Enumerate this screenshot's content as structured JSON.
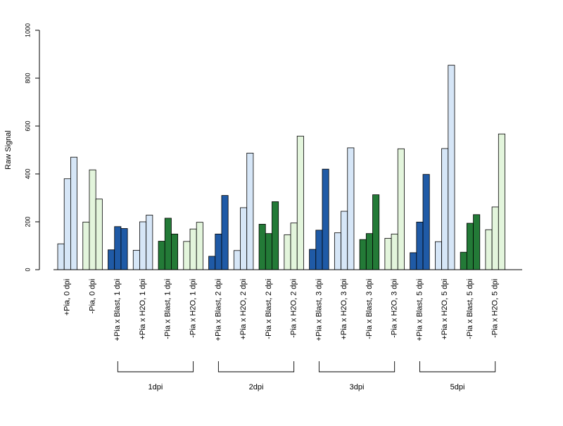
{
  "chart_data": {
    "type": "bar",
    "title": "",
    "xlabel": "",
    "ylabel": "Raw Signal",
    "ylim": [
      0,
      1000
    ],
    "yticks": [
      0,
      200,
      400,
      600,
      800,
      1000
    ],
    "grid": false,
    "legend": "none",
    "categories": [
      "+Pia, 0 dpi",
      "-Pia, 0 dpi",
      "+Pia x Blast, 1 dpi",
      "+Pia x H2O, 1 dpi",
      "-Pia x Blast, 1 dpi",
      "-Pia x H2O, 1 dpi",
      "+Pia x Blast, 2 dpi",
      "+Pia x H2O, 2 dpi",
      "-Pia x Blast, 2 dpi",
      "-Pia x H2O, 2 dpi",
      "+Pia x Blast, 3 dpi",
      "+Pia x H2O, 3 dpi",
      "-Pia x Blast, 3 dpi",
      "-Pia x H2O, 3 dpi",
      "+Pia x Blast, 5 dpi",
      "+Pia x H2O, 5 dpi",
      "-Pia x Blast, 5 dpi",
      "-Pia x H2O, 5 dpi"
    ],
    "category_colors": [
      "#d6e6f7",
      "#e3f5dc",
      "#1f5aa6",
      "#d6e6f7",
      "#237a37",
      "#e3f5dc",
      "#1f5aa6",
      "#d6e6f7",
      "#237a37",
      "#e3f5dc",
      "#1f5aa6",
      "#d6e6f7",
      "#237a37",
      "#e3f5dc",
      "#1f5aa6",
      "#d6e6f7",
      "#237a37",
      "#e3f5dc"
    ],
    "values": [
      [
        108,
        380,
        470
      ],
      [
        199,
        417,
        295
      ],
      [
        83,
        180,
        172
      ],
      [
        81,
        200,
        228
      ],
      [
        119,
        215,
        149
      ],
      [
        118,
        170,
        198
      ],
      [
        56,
        149,
        310
      ],
      [
        80,
        259,
        487
      ],
      [
        190,
        151,
        284
      ],
      [
        146,
        195,
        558
      ],
      [
        85,
        165,
        420
      ],
      [
        154,
        244,
        509
      ],
      [
        126,
        151,
        313
      ],
      [
        131,
        149,
        505
      ],
      [
        71,
        199,
        398
      ],
      [
        117,
        506,
        854
      ],
      [
        73,
        194,
        230
      ],
      [
        167,
        262,
        567
      ]
    ],
    "groups": [
      {
        "label": "1dpi",
        "from": 2,
        "to": 5
      },
      {
        "label": "2dpi",
        "from": 6,
        "to": 9
      },
      {
        "label": "3dpi",
        "from": 10,
        "to": 13
      },
      {
        "label": "5dpi",
        "from": 14,
        "to": 17
      }
    ]
  }
}
